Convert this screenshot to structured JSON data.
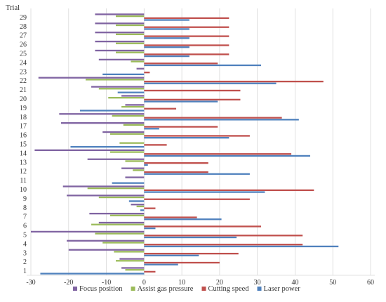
{
  "chart_data": {
    "type": "bar",
    "orientation": "horizontal",
    "ylabel": "Trial",
    "xlabel": "",
    "xlim": [
      -30,
      60
    ],
    "x_ticks": [
      -30,
      -20,
      -10,
      0,
      10,
      20,
      30,
      40,
      50,
      60
    ],
    "grid": {
      "vertical": true,
      "horizontal": false
    },
    "legend_position": "bottom",
    "categories": [
      "1",
      "2",
      "3",
      "4",
      "5",
      "6",
      "7",
      "8",
      "9",
      "10",
      "11",
      "12",
      "13",
      "14",
      "15",
      "16",
      "17",
      "18",
      "19",
      "20",
      "21",
      "22",
      "23",
      "24",
      "25",
      "26",
      "27",
      "28",
      "29"
    ],
    "series": [
      {
        "name": "Focus position",
        "color": "#8064A2",
        "values": [
          -6,
          -6.5,
          -20,
          -20.5,
          -30,
          -12,
          -14.5,
          -3.5,
          -20.5,
          -21.5,
          -5,
          -6,
          -15,
          -29,
          0,
          -11,
          -22,
          -22.5,
          -5,
          -6,
          -14,
          -28,
          -2,
          -12,
          -13,
          -13,
          -13,
          -13,
          -13
        ]
      },
      {
        "name": "Assist gas pressure",
        "color": "#9BBB59",
        "values": [
          -5,
          -7.5,
          -8,
          -11,
          -13,
          -14,
          -9,
          -2,
          -12,
          -15,
          0,
          -3,
          -5,
          -9,
          -6.5,
          -9,
          -5.5,
          -8.5,
          -6,
          -9.5,
          -12,
          -15.5,
          0,
          -3.5,
          -7.5,
          -7.5,
          -7.5,
          -7.5,
          -7.5
        ]
      },
      {
        "name": "Cutting speed",
        "color": "#C0504D",
        "values": [
          3,
          20,
          25,
          42,
          42,
          31,
          14,
          3,
          28,
          45,
          0,
          17,
          17,
          39,
          6,
          28,
          19.5,
          36.5,
          8.5,
          25.5,
          25.5,
          47.5,
          1.5,
          19.5,
          22.5,
          22.5,
          22.5,
          22.5,
          22.5
        ]
      },
      {
        "name": "Laser power",
        "color": "#4F81BD",
        "values": [
          -27.5,
          9,
          14.5,
          51.5,
          24.5,
          3,
          20.5,
          -1,
          -4,
          32,
          -8.5,
          28,
          1,
          44,
          -19.5,
          22.5,
          4,
          41,
          -17,
          19.5,
          -7,
          35,
          -11,
          31,
          12,
          12,
          12,
          12,
          12
        ]
      }
    ]
  }
}
